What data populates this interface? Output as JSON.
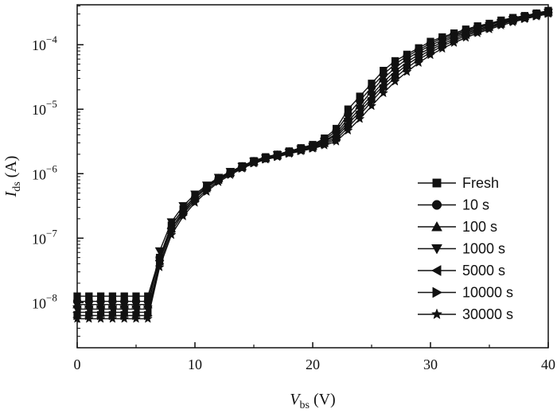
{
  "chart_data": {
    "type": "line",
    "xlabel": {
      "main": "V",
      "sub": "bs",
      "unit": " (V)"
    },
    "ylabel": {
      "main": "I",
      "sub": "ds",
      "unit": " (A)"
    },
    "xlim": [
      0,
      40
    ],
    "ylim_log10": [
      -8.7,
      -3.38
    ],
    "y_scale": "log",
    "x_ticks": [
      0,
      10,
      20,
      30,
      40
    ],
    "x_tick_labels": [
      "0",
      "10",
      "20",
      "30",
      "40"
    ],
    "y_ticks_log10": [
      -8,
      -7,
      -6,
      -5,
      -4
    ],
    "y_tick_labels": [
      {
        "base": "10",
        "exp": "−8"
      },
      {
        "base": "10",
        "exp": "−7"
      },
      {
        "base": "10",
        "exp": "−6"
      },
      {
        "base": "10",
        "exp": "−5"
      },
      {
        "base": "10",
        "exp": "−4"
      }
    ],
    "grid": false,
    "legend_position": "right",
    "x": [
      0,
      1,
      2,
      3,
      4,
      5,
      6,
      7,
      8,
      9,
      10,
      11,
      12,
      13,
      14,
      15,
      16,
      17,
      18,
      19,
      20,
      21,
      22,
      23,
      24,
      25,
      26,
      27,
      28,
      29,
      30,
      31,
      32,
      33,
      34,
      35,
      36,
      37,
      38,
      39,
      40
    ],
    "series": [
      {
        "name": "Fresh",
        "marker": "square",
        "y_log10": [
          -7.9,
          -7.9,
          -7.9,
          -7.9,
          -7.9,
          -7.9,
          -7.9,
          -7.3,
          -6.8,
          -6.55,
          -6.35,
          -6.2,
          -6.07,
          -5.97,
          -5.88,
          -5.8,
          -5.74,
          -5.7,
          -5.65,
          -5.6,
          -5.55,
          -5.45,
          -5.3,
          -5.0,
          -4.8,
          -4.6,
          -4.4,
          -4.25,
          -4.15,
          -4.05,
          -3.95,
          -3.88,
          -3.82,
          -3.76,
          -3.71,
          -3.67,
          -3.62,
          -3.58,
          -3.55,
          -3.51,
          -3.47
        ]
      },
      {
        "name": "10 s",
        "marker": "circle",
        "y_log10": [
          -7.98,
          -7.98,
          -7.98,
          -7.98,
          -7.98,
          -7.98,
          -7.98,
          -7.3,
          -6.85,
          -6.6,
          -6.38,
          -6.22,
          -6.08,
          -5.98,
          -5.89,
          -5.81,
          -5.75,
          -5.71,
          -5.66,
          -5.61,
          -5.56,
          -5.47,
          -5.34,
          -5.08,
          -4.87,
          -4.66,
          -4.46,
          -4.3,
          -4.18,
          -4.08,
          -3.98,
          -3.9,
          -3.84,
          -3.78,
          -3.72,
          -3.68,
          -3.63,
          -3.59,
          -3.56,
          -3.52,
          -3.48
        ]
      },
      {
        "name": "100 s",
        "marker": "triangle-up",
        "y_log10": [
          -8.03,
          -8.03,
          -8.03,
          -8.03,
          -8.03,
          -8.03,
          -8.03,
          -7.3,
          -6.8,
          -6.55,
          -6.35,
          -6.2,
          -6.07,
          -5.98,
          -5.89,
          -5.81,
          -5.75,
          -5.71,
          -5.66,
          -5.61,
          -5.57,
          -5.49,
          -5.38,
          -5.14,
          -4.94,
          -4.72,
          -4.52,
          -4.36,
          -4.22,
          -4.11,
          -4.01,
          -3.93,
          -3.86,
          -3.8,
          -3.74,
          -3.69,
          -3.64,
          -3.6,
          -3.56,
          -3.52,
          -3.49
        ]
      },
      {
        "name": "1000 s",
        "marker": "triangle-down",
        "y_log10": [
          -8.1,
          -8.1,
          -8.1,
          -8.1,
          -8.1,
          -8.1,
          -8.1,
          -7.2,
          -6.75,
          -6.5,
          -6.32,
          -6.18,
          -6.06,
          -5.97,
          -5.89,
          -5.81,
          -5.76,
          -5.71,
          -5.67,
          -5.62,
          -5.58,
          -5.5,
          -5.41,
          -5.19,
          -4.99,
          -4.78,
          -4.58,
          -4.41,
          -4.27,
          -4.15,
          -4.05,
          -3.96,
          -3.88,
          -3.82,
          -3.76,
          -3.71,
          -3.66,
          -3.61,
          -3.57,
          -3.53,
          -3.5
        ]
      },
      {
        "name": "5000 s",
        "marker": "triangle-left",
        "y_log10": [
          -8.15,
          -8.15,
          -8.15,
          -8.15,
          -8.15,
          -8.15,
          -8.15,
          -7.35,
          -6.85,
          -6.58,
          -6.38,
          -6.22,
          -6.09,
          -5.99,
          -5.9,
          -5.82,
          -5.76,
          -5.72,
          -5.67,
          -5.63,
          -5.59,
          -5.52,
          -5.44,
          -5.23,
          -5.04,
          -4.83,
          -4.63,
          -4.46,
          -4.31,
          -4.19,
          -4.08,
          -3.99,
          -3.91,
          -3.84,
          -3.78,
          -3.72,
          -3.67,
          -3.62,
          -3.58,
          -3.54,
          -3.5
        ]
      },
      {
        "name": "10000 s",
        "marker": "triangle-right",
        "y_log10": [
          -8.2,
          -8.2,
          -8.2,
          -8.2,
          -8.2,
          -8.2,
          -8.2,
          -7.4,
          -6.9,
          -6.62,
          -6.42,
          -6.25,
          -6.11,
          -6.0,
          -5.91,
          -5.83,
          -5.77,
          -5.73,
          -5.68,
          -5.64,
          -5.6,
          -5.54,
          -5.47,
          -5.28,
          -5.09,
          -4.88,
          -4.68,
          -4.51,
          -4.36,
          -4.23,
          -4.12,
          -4.02,
          -3.94,
          -3.86,
          -3.8,
          -3.74,
          -3.68,
          -3.63,
          -3.59,
          -3.55,
          -3.51
        ]
      },
      {
        "name": "30000 s",
        "marker": "star",
        "y_log10": [
          -8.25,
          -8.25,
          -8.25,
          -8.25,
          -8.25,
          -8.25,
          -8.25,
          -7.45,
          -6.95,
          -6.66,
          -6.45,
          -6.28,
          -6.13,
          -6.02,
          -5.92,
          -5.84,
          -5.78,
          -5.74,
          -5.69,
          -5.65,
          -5.61,
          -5.56,
          -5.5,
          -5.33,
          -5.15,
          -4.95,
          -4.75,
          -4.57,
          -4.42,
          -4.28,
          -4.16,
          -4.06,
          -3.97,
          -3.89,
          -3.82,
          -3.76,
          -3.7,
          -3.65,
          -3.6,
          -3.56,
          -3.52
        ]
      }
    ]
  }
}
